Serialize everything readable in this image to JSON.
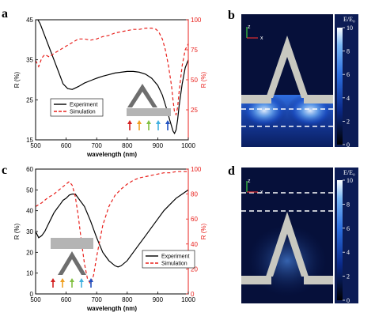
{
  "chart_data": [
    {
      "panel": "a",
      "type": "line",
      "xlabel": "wavelength (nm)",
      "ylabel_left": "R (%)",
      "ylabel_right": "R (%)",
      "xlim": [
        500,
        1000
      ],
      "ylim_left": [
        15,
        45
      ],
      "ylim_right": [
        0,
        100
      ],
      "xticks": [
        "500",
        "600",
        "700",
        "800",
        "900",
        "1000"
      ],
      "yticks_left": [
        "15",
        "25",
        "35",
        "45"
      ],
      "yticks_right": [
        "25",
        "50",
        "75",
        "100"
      ],
      "legend": [
        "Experiment",
        "Simulation"
      ],
      "legend_position": "bottom-left",
      "series": [
        {
          "name": "Experiment",
          "axis": "left",
          "color": "#000000",
          "style": "solid",
          "x": [
            500,
            515,
            530,
            545,
            560,
            575,
            590,
            605,
            620,
            640,
            660,
            680,
            700,
            720,
            740,
            760,
            780,
            800,
            820,
            840,
            860,
            880,
            900,
            915,
            930,
            940,
            950,
            955,
            960,
            965,
            970,
            980,
            990,
            1000
          ],
          "y": [
            46,
            44,
            41,
            38,
            35,
            32,
            29,
            27.8,
            27.6,
            28.3,
            29.2,
            29.8,
            30.4,
            30.9,
            31.3,
            31.7,
            31.9,
            32.1,
            32.1,
            31.9,
            31.4,
            30.4,
            28.6,
            26.2,
            22.5,
            19.8,
            17.2,
            16.6,
            17.5,
            20,
            23.5,
            29,
            33,
            35
          ]
        },
        {
          "name": "Simulation",
          "axis": "right",
          "color": "#e8201c",
          "style": "dashed",
          "x": [
            500,
            510,
            520,
            530,
            545,
            560,
            580,
            600,
            620,
            640,
            660,
            680,
            700,
            720,
            740,
            760,
            780,
            800,
            820,
            840,
            860,
            880,
            895,
            905,
            915,
            925,
            935,
            945,
            950,
            955,
            960,
            965,
            970,
            980,
            990,
            1000
          ],
          "y": [
            66,
            61,
            68,
            71,
            69,
            72,
            75,
            78,
            81,
            84,
            84,
            83,
            84,
            86,
            87,
            89,
            90,
            91,
            92,
            92,
            93,
            93,
            92,
            89,
            84,
            75,
            62,
            45,
            33,
            23,
            21,
            27,
            40,
            62,
            75,
            80
          ]
        }
      ]
    },
    {
      "panel": "c",
      "type": "line",
      "xlabel": "wavelength (nm)",
      "ylabel_left": "R (%)",
      "ylabel_right": "R (%)",
      "xlim": [
        500,
        1000
      ],
      "ylim_left": [
        0,
        60
      ],
      "ylim_right": [
        0,
        100
      ],
      "xticks": [
        "500",
        "600",
        "700",
        "800",
        "900",
        "1000"
      ],
      "yticks_left": [
        "0",
        "10",
        "20",
        "30",
        "40",
        "50",
        "60"
      ],
      "yticks_right": [
        "0",
        "20",
        "40",
        "60",
        "80",
        "100"
      ],
      "legend": [
        "Experiment",
        "Simulation"
      ],
      "legend_position": "bottom-right",
      "series": [
        {
          "name": "Experiment",
          "axis": "left",
          "color": "#000000",
          "style": "solid",
          "x": [
            500,
            510,
            520,
            530,
            540,
            550,
            560,
            570,
            580,
            590,
            600,
            610,
            620,
            630,
            640,
            650,
            660,
            680,
            700,
            720,
            740,
            760,
            770,
            780,
            800,
            820,
            840,
            860,
            880,
            900,
            920,
            940,
            960,
            980,
            1000
          ],
          "y": [
            30,
            27,
            28,
            30,
            33,
            36,
            39,
            41,
            43,
            45,
            46,
            47.5,
            48,
            48,
            46,
            44,
            42,
            35,
            27,
            20,
            16,
            13.5,
            13,
            13.5,
            16,
            20,
            24,
            28,
            32,
            36,
            40,
            43,
            46,
            48,
            50
          ]
        },
        {
          "name": "Simulation",
          "axis": "right",
          "color": "#e8201c",
          "style": "dashed",
          "x": [
            500,
            520,
            540,
            560,
            580,
            600,
            610,
            620,
            630,
            640,
            650,
            660,
            670,
            680,
            690,
            700,
            720,
            740,
            760,
            780,
            800,
            820,
            840,
            860,
            880,
            900,
            920,
            940,
            960,
            980,
            1000
          ],
          "y": [
            70,
            73,
            77,
            80,
            84,
            88,
            90,
            87,
            78,
            62,
            42,
            24,
            12,
            8,
            15,
            30,
            55,
            70,
            79,
            84,
            88,
            91,
            93,
            94,
            95,
            96,
            97,
            97,
            98,
            98,
            98
          ]
        }
      ]
    }
  ],
  "panels": {
    "a": {
      "label": "a"
    },
    "b": {
      "label": "b",
      "colorbar_label": "E/E₀",
      "colorbar_ticks": [
        "10",
        "8",
        "6",
        "4",
        "2",
        "0"
      ],
      "colorbar_range": [
        0,
        10
      ],
      "axes_x": "x",
      "axes_z": "z"
    },
    "c": {
      "label": "c"
    },
    "d": {
      "label": "d",
      "colorbar_label": "E/E₀",
      "colorbar_ticks": [
        "10",
        "8",
        "6",
        "4",
        "2",
        "0"
      ],
      "colorbar_range": [
        0,
        10
      ],
      "axes_x": "x",
      "axes_z": "z"
    }
  },
  "colors": {
    "experiment": "#000000",
    "simulation": "#e8201c",
    "structure": "#6e6e6e",
    "substrate": "#b4b4b4",
    "field_bg": "#06103a"
  },
  "arrow_colors": [
    "#d42020",
    "#f0a020",
    "#80c040",
    "#40b0e0",
    "#2050c0"
  ]
}
